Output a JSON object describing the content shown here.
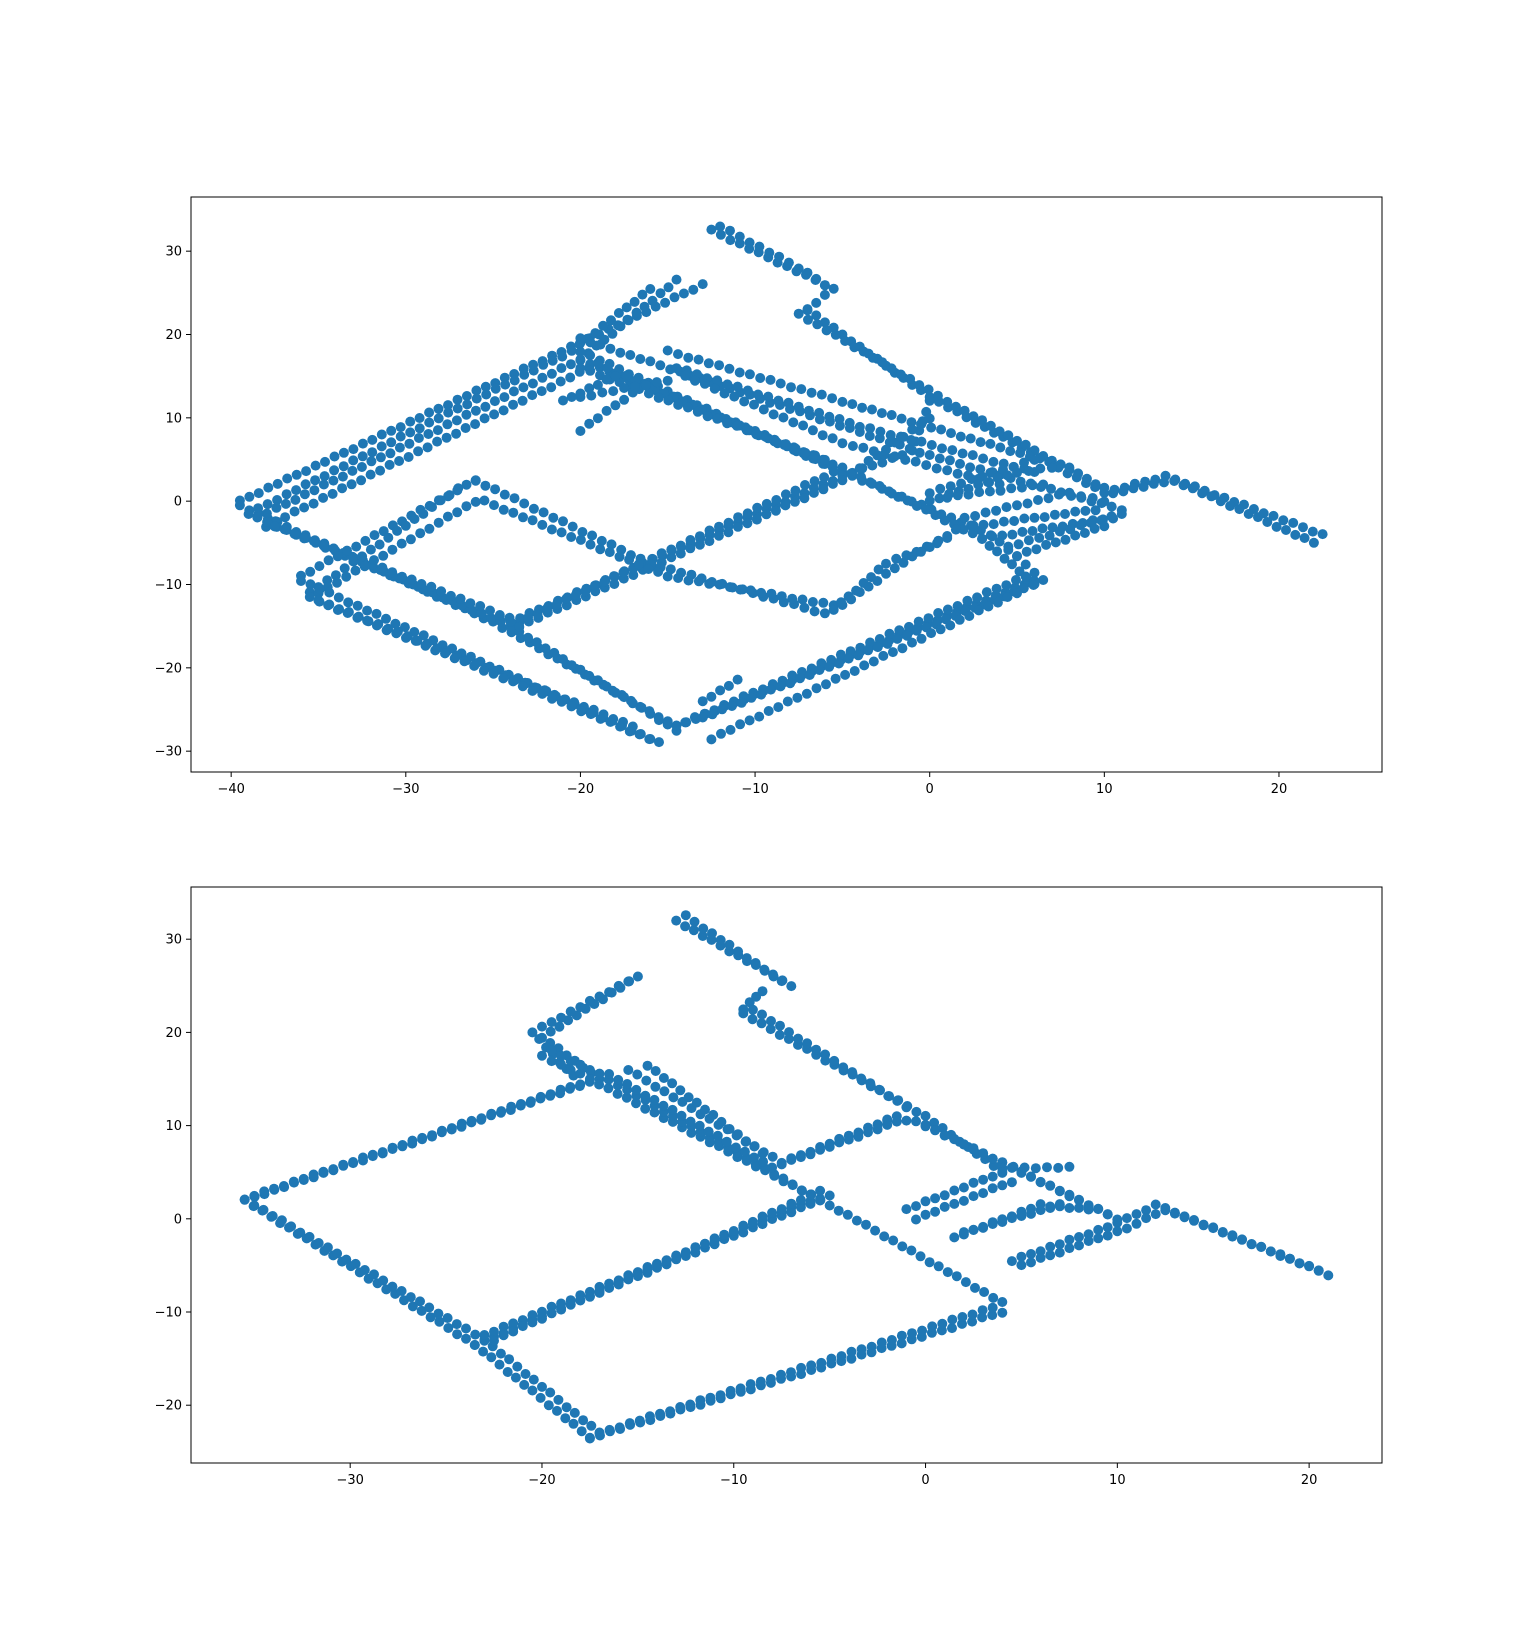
{
  "figure": {
    "background": "#ffffff",
    "marker_color": "#1f77b4"
  },
  "chart_data": [
    {
      "type": "scatter",
      "title": "",
      "xlabel": "",
      "ylabel": "",
      "xlim": [
        -42.3,
        25.9
      ],
      "ylim": [
        -32.5,
        36.5
      ],
      "xticks": [
        -40,
        -30,
        -20,
        -10,
        0,
        10,
        20
      ],
      "yticks": [
        -30,
        -20,
        -10,
        0,
        10,
        20,
        30
      ],
      "grid": false,
      "color": "#1f77b4",
      "series": [
        {
          "paths": [
            [
              [
                -39.5,
                0
              ],
              [
                -20,
                19
              ],
              [
                -13,
                26
              ]
            ],
            [
              [
                -39,
                -1.5
              ],
              [
                -20.5,
                18
              ],
              [
                -16,
                25.5
              ]
            ],
            [
              [
                -38.5,
                -2
              ],
              [
                -20,
                17
              ],
              [
                -14.5,
                26.5
              ]
            ],
            [
              [
                -38,
                -3
              ],
              [
                -19.5,
                16
              ]
            ],
            [
              [
                -39.5,
                -0.5
              ],
              [
                -25,
                -14.5
              ],
              [
                -15,
                -26.5
              ]
            ],
            [
              [
                -38.5,
                -2
              ],
              [
                -24,
                -15
              ],
              [
                -14.5,
                -27.5
              ]
            ],
            [
              [
                -37.5,
                -3
              ],
              [
                -23.5,
                -14.5
              ]
            ],
            [
              [
                -20,
                19.5
              ],
              [
                0,
                5.5
              ],
              [
                11,
                -1
              ]
            ],
            [
              [
                -20,
                18
              ],
              [
                -5,
                3.5
              ],
              [
                3.5,
                -4
              ],
              [
                6,
                -8.5
              ]
            ],
            [
              [
                -20,
                17
              ],
              [
                -5,
                4
              ],
              [
                3,
                -4.5
              ],
              [
                6,
                -10
              ]
            ],
            [
              [
                -19,
                16.5
              ],
              [
                -6,
                4.5
              ]
            ],
            [
              [
                -20,
                16
              ],
              [
                -6,
                5
              ]
            ],
            [
              [
                -24,
                -14.5
              ],
              [
                -5,
                3
              ],
              [
                -1,
                6
              ],
              [
                0,
                12
              ]
            ],
            [
              [
                -23.5,
                -15
              ],
              [
                -5,
                2.5
              ],
              [
                0,
                10
              ]
            ],
            [
              [
                -23,
                -14
              ],
              [
                -5.5,
                3.5
              ]
            ],
            [
              [
                -14.5,
                -27
              ],
              [
                6,
                -9.5
              ]
            ],
            [
              [
                -14,
                -26.5
              ],
              [
                5.5,
                -9
              ]
            ],
            [
              [
                -13,
                -26
              ],
              [
                6.5,
                -9.5
              ]
            ],
            [
              [
                -12.5,
                -28.5
              ],
              [
                5,
                -11
              ]
            ],
            [
              [
                -13,
                -24
              ],
              [
                -11,
                -21.5
              ]
            ],
            [
              [
                -12.5,
                32.5
              ],
              [
                -6,
                26
              ]
            ],
            [
              [
                -12,
                33
              ],
              [
                -7.5,
                28
              ],
              [
                -6,
                26
              ]
            ],
            [
              [
                -7,
                23
              ],
              [
                -5.5,
                25.5
              ]
            ],
            [
              [
                -7,
                23
              ],
              [
                0,
                12.5
              ],
              [
                10,
                1
              ],
              [
                13.5,
                3
              ],
              [
                22.5,
                -4
              ]
            ],
            [
              [
                -7.5,
                22.5
              ],
              [
                1,
                12
              ],
              [
                6.5,
                5.5
              ],
              [
                10.5,
                1
              ],
              [
                14,
                2.5
              ],
              [
                22,
                -5
              ]
            ],
            [
              [
                -15,
                18
              ],
              [
                -5,
                12
              ],
              [
                8,
                4
              ]
            ],
            [
              [
                -14.5,
                16
              ],
              [
                -4,
                9
              ],
              [
                6,
                3.5
              ]
            ],
            [
              [
                -14,
                15
              ],
              [
                -5,
                7
              ],
              [
                4,
                2
              ]
            ],
            [
              [
                -20,
                8.5
              ],
              [
                -17,
                13
              ]
            ],
            [
              [
                -20,
                12.5
              ],
              [
                -15,
                14.5
              ]
            ],
            [
              [
                -21,
                12
              ],
              [
                -18,
                15
              ]
            ],
            [
              [
                -26,
                2.5
              ],
              [
                -36,
                -9
              ]
            ],
            [
              [
                -27,
                1.5
              ],
              [
                -35.5,
                -11
              ]
            ],
            [
              [
                -26,
                0
              ],
              [
                -35,
                -11
              ]
            ],
            [
              [
                -26,
                2.5
              ],
              [
                -16,
                -7.5
              ],
              [
                -6,
                -13.5
              ]
            ],
            [
              [
                -25.5,
                0
              ],
              [
                -15,
                -9
              ],
              [
                -5.5,
                -12.5
              ]
            ],
            [
              [
                -5.5,
                -13
              ],
              [
                -2.5,
                -7.5
              ],
              [
                1,
                -4.5
              ]
            ],
            [
              [
                -5,
                -12.5
              ],
              [
                -2,
                -8
              ],
              [
                1.5,
                -3.5
              ]
            ],
            [
              [
                -36,
                -9.5
              ],
              [
                -16,
                -28.5
              ]
            ],
            [
              [
                -35.5,
                -11.5
              ],
              [
                -17,
                -27
              ]
            ],
            [
              [
                -35,
                -12
              ],
              [
                -15.5,
                -29
              ]
            ],
            [
              [
                0,
                1
              ],
              [
                6,
                5
              ]
            ],
            [
              [
                0,
                0
              ],
              [
                5,
                3.5
              ],
              [
                7,
                4
              ]
            ],
            [
              [
                1,
                0.5
              ],
              [
                6.5,
                2
              ]
            ],
            [
              [
                2,
                -2
              ],
              [
                8,
                1
              ],
              [
                10,
                0
              ]
            ],
            [
              [
                2.5,
                -3
              ],
              [
                9.5,
                -1
              ]
            ],
            [
              [
                3,
                -4.5
              ],
              [
                10.5,
                -2
              ]
            ],
            [
              [
                4.5,
                -5.5
              ],
              [
                11,
                -1.5
              ]
            ],
            [
              [
                5,
                -6.5
              ],
              [
                10,
                -3
              ]
            ]
          ]
        }
      ]
    },
    {
      "type": "scatter",
      "title": "",
      "xlabel": "",
      "ylabel": "",
      "xlim": [
        -38.3,
        23.8
      ],
      "ylim": [
        -26.2,
        35.6
      ],
      "xticks": [
        -30,
        -20,
        -10,
        0,
        10,
        20
      ],
      "yticks": [
        -20,
        -10,
        0,
        10,
        20,
        30
      ],
      "grid": false,
      "color": "#1f77b4",
      "series": [
        {
          "paths": [
            [
              [
                -35.5,
                2
              ],
              [
                -17,
                15
              ],
              [
                -20,
                19.5
              ],
              [
                -15,
                26
              ]
            ],
            [
              [
                -35,
                2.5
              ],
              [
                -18,
                14.5
              ],
              [
                -20.5,
                20
              ],
              [
                -15.5,
                25.5
              ]
            ],
            [
              [
                -35.5,
                2
              ],
              [
                -23.5,
                -13.5
              ],
              [
                -17.5,
                -23.5
              ]
            ],
            [
              [
                -35,
                1.5
              ],
              [
                -23,
                -13
              ],
              [
                -17,
                -23
              ]
            ],
            [
              [
                -17.5,
                -23.5
              ],
              [
                4,
                -10
              ]
            ],
            [
              [
                -17,
                -23
              ],
              [
                3.5,
                -9.5
              ]
            ],
            [
              [
                -23.5,
                -13.5
              ],
              [
                -5,
                2.5
              ]
            ],
            [
              [
                -23,
                -12.5
              ],
              [
                -6,
                2
              ]
            ],
            [
              [
                -22.5,
                -13
              ],
              [
                -5.5,
                3
              ]
            ],
            [
              [
                -20,
                17.5
              ],
              [
                -17.5,
                15
              ],
              [
                -5,
                1.5
              ],
              [
                4,
                -9
              ]
            ],
            [
              [
                -19.5,
                18
              ],
              [
                -17,
                15.5
              ],
              [
                -5.5,
                2
              ]
            ],
            [
              [
                -15.5,
                16
              ],
              [
                -7.5,
                6
              ],
              [
                -1.5,
                11
              ]
            ],
            [
              [
                -16.5,
                15.5
              ],
              [
                -8,
                5.5
              ],
              [
                -2,
                10
              ]
            ],
            [
              [
                -14.5,
                16.5
              ],
              [
                -8.5,
                7
              ]
            ],
            [
              [
                -13,
                32
              ],
              [
                -7,
                25
              ]
            ],
            [
              [
                -12.5,
                32.5
              ],
              [
                -7.5,
                25.5
              ]
            ],
            [
              [
                -9.5,
                22.5
              ],
              [
                -8.5,
                24.5
              ]
            ],
            [
              [
                -9.5,
                22
              ],
              [
                0,
                11
              ],
              [
                4,
                5
              ]
            ],
            [
              [
                -9,
                22.5
              ],
              [
                -1,
                12
              ]
            ],
            [
              [
                -2,
                10.5
              ],
              [
                -0.5,
                10.5
              ],
              [
                10,
                0
              ]
            ],
            [
              [
                0,
                10
              ],
              [
                9.5,
                0.5
              ]
            ],
            [
              [
                4,
                5.5
              ],
              [
                7.5,
                5.5
              ]
            ],
            [
              [
                -1,
                1
              ],
              [
                4,
                5
              ]
            ],
            [
              [
                -0.5,
                0
              ],
              [
                4.5,
                4
              ]
            ],
            [
              [
                1.5,
                -2
              ],
              [
                6,
                1.5
              ],
              [
                8.5,
                1
              ]
            ],
            [
              [
                2,
                -1.5
              ],
              [
                7,
                1.5
              ]
            ],
            [
              [
                4.5,
                -4.5
              ],
              [
                10,
                -0.5
              ],
              [
                12,
                1.5
              ],
              [
                21,
                -6
              ]
            ],
            [
              [
                5,
                -5
              ],
              [
                10.5,
                -1
              ],
              [
                12.5,
                1
              ],
              [
                20.5,
                -5.5
              ]
            ]
          ]
        }
      ]
    }
  ]
}
